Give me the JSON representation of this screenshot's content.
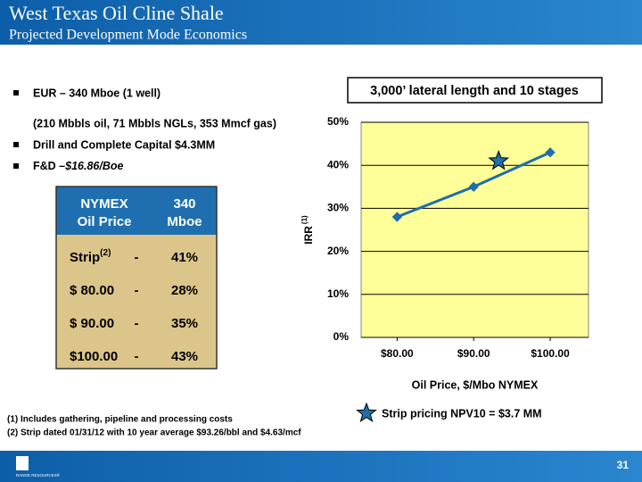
{
  "header": {
    "title": "West Texas Oil Cline Shale",
    "subtitle": "Projected Development Mode Economics"
  },
  "bullets": {
    "eur": "EUR – 340 Mboe (1 well)",
    "eur_detail": "(210 Mbbls oil, 71 Mbbls NGLs, 353 Mmcf gas)",
    "capital": "Drill and Complete Capital $4.3MM",
    "fd_label": "F&D –",
    "fd_value": "$16.86/Boe"
  },
  "table": {
    "header": [
      [
        "NYMEX",
        "Oil Price"
      ],
      [
        "340",
        "Mboe"
      ]
    ],
    "rows": [
      {
        "price": "Strip",
        "note": "(2)",
        "sep": "-",
        "irr": "41%"
      },
      {
        "price": "$ 80.00",
        "sep": "-",
        "irr": "28%"
      },
      {
        "price": "$ 90.00",
        "sep": "-",
        "irr": "35%"
      },
      {
        "price": "$100.00",
        "sep": "-",
        "irr": "43%"
      }
    ]
  },
  "chart_data": {
    "type": "line",
    "title": "3,000’ lateral length and 10 stages",
    "x_label": "Oil Price, $/Mbo NYMEX",
    "y_label": "IRR",
    "y_label_note": "(1)",
    "x": [
      80,
      90,
      100
    ],
    "xlim": [
      75.3,
      105
    ],
    "xticks": [
      {
        "value": 80,
        "label": "$80.00"
      },
      {
        "value": 90,
        "label": "$90.00"
      },
      {
        "value": 100,
        "label": "$100.00"
      }
    ],
    "ylim": [
      0,
      50
    ],
    "yticks": [
      {
        "value": 0,
        "label": "0%"
      },
      {
        "value": 10,
        "label": "10%"
      },
      {
        "value": 20,
        "label": "20%"
      },
      {
        "value": 30,
        "label": "30%"
      },
      {
        "value": 40,
        "label": "40%"
      },
      {
        "value": 50,
        "label": "50%"
      }
    ],
    "grid": true,
    "plot_color": "#ffff99",
    "series": [
      {
        "color": "#1f6fa8",
        "values": [
          28,
          35,
          43
        ]
      }
    ],
    "annotations": [
      {
        "label": "Strip pricing NPV10 = $3.7 MM",
        "x": 93.26,
        "y": 41,
        "color": "#1f6fa8"
      }
    ]
  },
  "footnotes": [
    "(1)  Includes gathering, pipeline and processing costs",
    "(2)  Strip dated 01/31/12 with 10 year average $93.26/bbl and $4.63/mcf"
  ],
  "footer": {
    "page": "31",
    "logo": "RANGE RESOURCES®"
  }
}
